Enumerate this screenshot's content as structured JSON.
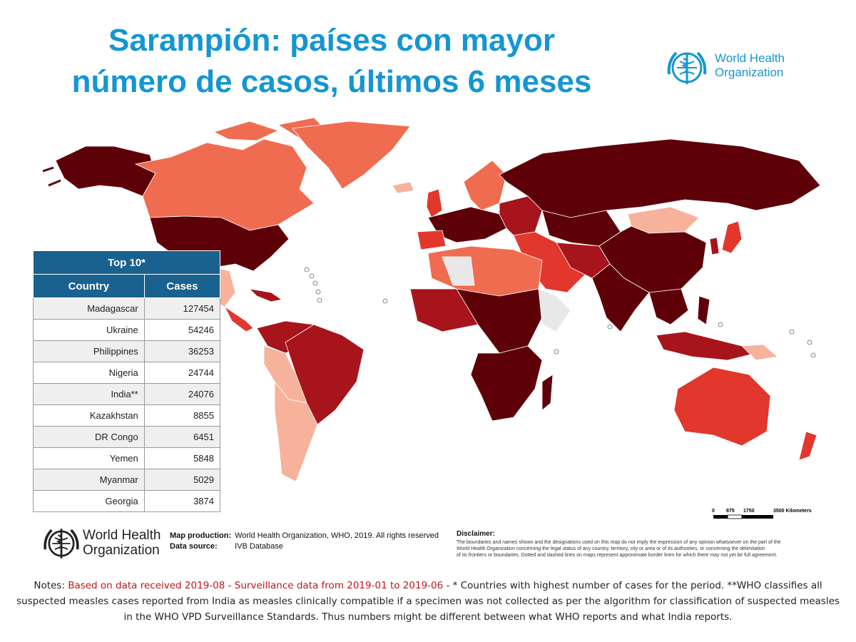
{
  "title": {
    "line1": "Sarampión: países con mayor",
    "line2": "número de casos, últimos 6 meses"
  },
  "logo": {
    "line1": "World Health",
    "line2": "Organization"
  },
  "map": {
    "legend_colors": {
      "darkest": "#5e0008",
      "dark": "#a8141c",
      "medium": "#e2372d",
      "light": "#f06c50",
      "lightest": "#f7b29c",
      "no_data": "#e8e8e8"
    },
    "scale": {
      "ticks": [
        "0",
        "875",
        "1750",
        "3500 Kilometers"
      ]
    }
  },
  "top10": {
    "title": "Top 10*",
    "headers": {
      "country": "Country",
      "cases": "Cases"
    },
    "rows": [
      {
        "country": "Madagascar",
        "cases": "127454"
      },
      {
        "country": "Ukraine",
        "cases": "54246"
      },
      {
        "country": "Philippines",
        "cases": "36253"
      },
      {
        "country": "Nigeria",
        "cases": "24744"
      },
      {
        "country": "India**",
        "cases": "24076"
      },
      {
        "country": "Kazakhstan",
        "cases": "8855"
      },
      {
        "country": "DR Congo",
        "cases": "6451"
      },
      {
        "country": "Yemen",
        "cases": "5848"
      },
      {
        "country": "Myanmar",
        "cases": "5029"
      },
      {
        "country": "Georgia",
        "cases": "3874"
      }
    ]
  },
  "credits": {
    "production_label": "Map production:",
    "production_value": "World Health Organization, WHO, 2019. All rights reserved",
    "source_label": "Data source:",
    "source_value": "IVB Database"
  },
  "disclaimer": {
    "heading": "Disclaimer:",
    "line1": "The boundaries and names shown and the designations used on this map do not imply the expression of any opinion whatsoever on the part of the",
    "line2": "World Health Organization concerning the legal status of any country, territory, city or area or of its authorities, or concerning the delimitation",
    "line3": "of its frontiers or boundaries. Dotted and dashed lines on maps represent approximate border lines for which there may not yet be full agreement."
  },
  "notes": {
    "prefix": "Notes: ",
    "highlight": "Based on data received 2019-08 - Surveillance data from 2019-01 to 2019-06",
    "rest": " - * Countries with highest number of cases for the period. **WHO classifies all suspected measles cases reported from India as measles clinically compatible if a specimen was not collected as per the algorithm for classification of suspected measles in the WHO VPD Surveillance Standards. Thus numbers might be different between what WHO reports and what India reports."
  }
}
